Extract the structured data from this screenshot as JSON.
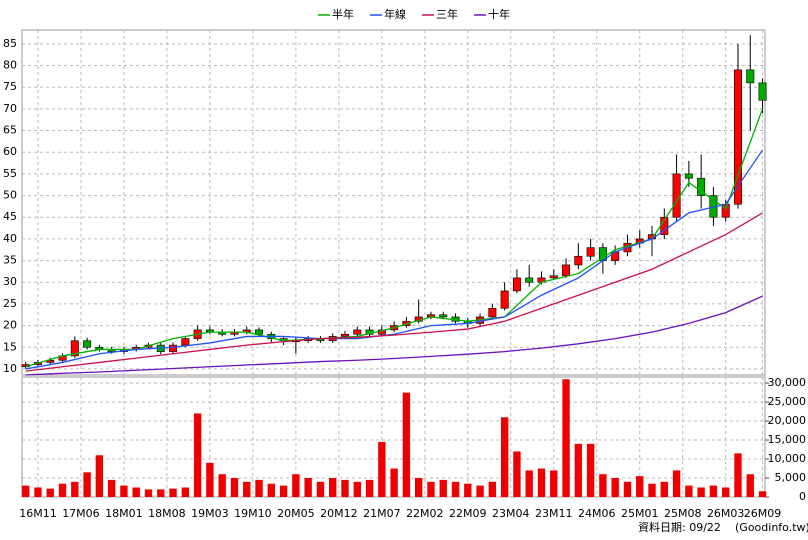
{
  "chart_data": {
    "type": "candlestick",
    "x": [
      -2,
      0,
      2,
      4,
      6,
      8,
      10,
      12,
      14,
      16,
      18,
      20,
      22,
      24,
      26,
      28,
      30,
      32,
      34,
      36,
      38,
      40,
      42,
      44,
      46,
      48,
      50,
      52,
      54,
      56,
      58,
      60,
      62,
      64,
      66,
      68,
      70,
      72,
      74,
      76,
      78,
      80,
      82,
      84,
      86,
      88,
      90,
      92,
      94,
      96,
      98,
      100,
      102,
      104,
      106,
      108,
      110,
      112,
      114,
      116,
      118
    ],
    "open": [
      10.5,
      11,
      11.5,
      12,
      13,
      16.5,
      15,
      14.5,
      14,
      14.5,
      15,
      15.5,
      14,
      15.5,
      17,
      19,
      18.5,
      18,
      18.5,
      19,
      18,
      17,
      16.5,
      16.5,
      17,
      16.5,
      17.5,
      18,
      19,
      18,
      19,
      20,
      21,
      22,
      22.5,
      22,
      21,
      20.5,
      22,
      24,
      28,
      31,
      30,
      31,
      31.5,
      34,
      36,
      38,
      35,
      37,
      39,
      40,
      41,
      45,
      55,
      54,
      50,
      45,
      48,
      79,
      76
    ],
    "high": [
      11.6,
      12.1,
      12.6,
      13.6,
      17.5,
      17.2,
      15.6,
      15.1,
      15.1,
      15.6,
      16.1,
      16.1,
      16.1,
      17.6,
      20,
      19.8,
      19.2,
      19.2,
      19.8,
      19.6,
      18.6,
      17.6,
      17.2,
      17.6,
      17.6,
      18.2,
      18.8,
      19.8,
      19.8,
      20,
      21,
      22,
      26,
      23.2,
      23.2,
      22.8,
      21.8,
      22.8,
      25,
      30,
      33,
      34,
      32.5,
      33,
      35.5,
      39,
      40,
      39,
      38.5,
      41,
      42,
      43,
      47,
      59.5,
      58,
      59.5,
      52,
      49,
      85,
      87,
      77
    ],
    "low": [
      10,
      10.5,
      11,
      11.5,
      12.5,
      14.5,
      14,
      13.5,
      13.5,
      14,
      14.5,
      13.4,
      13.5,
      15,
      16.5,
      18,
      17.5,
      17.5,
      18,
      17.5,
      16,
      15.5,
      13.5,
      16,
      16,
      16,
      17,
      17.5,
      17.5,
      17.5,
      18.5,
      19.5,
      20.5,
      21.5,
      21.5,
      20.5,
      19.5,
      20,
      21.5,
      23.5,
      27.5,
      29,
      29.5,
      30.5,
      31,
      33,
      35,
      32,
      34,
      36,
      38,
      36,
      40,
      44,
      52,
      47,
      43,
      44,
      47,
      65,
      69
    ],
    "close": [
      11,
      11.5,
      12,
      13,
      16.5,
      15,
      14.5,
      14,
      14.5,
      15,
      15.5,
      14,
      15.5,
      17,
      19,
      18.5,
      18,
      18.5,
      19,
      18,
      17,
      16.5,
      16.5,
      17,
      16.5,
      17.5,
      18,
      19,
      18,
      19,
      20,
      21,
      22,
      22.5,
      22,
      21,
      20.5,
      22,
      24,
      28,
      31,
      30,
      31,
      31.5,
      34,
      36,
      38,
      35,
      37,
      39,
      40,
      41,
      45,
      55,
      54,
      50,
      45,
      48,
      79,
      76,
      72
    ],
    "up_color": "#ff0000",
    "down_color": "#00aa00",
    "lines": [
      {
        "name": "半年",
        "color": "#00b000",
        "x": [
          -2,
          4,
          10,
          16,
          22,
          28,
          34,
          40,
          46,
          52,
          58,
          64,
          70,
          76,
          82,
          88,
          94,
          100,
          106,
          112,
          118
        ],
        "values": [
          10.5,
          13,
          14.5,
          14.5,
          17,
          18.5,
          18.5,
          16.5,
          17,
          17.5,
          19.5,
          22,
          21,
          22,
          30,
          32,
          37.5,
          40,
          53,
          47,
          70
        ]
      },
      {
        "name": "年線",
        "color": "#2050ff",
        "x": [
          -2,
          4,
          10,
          16,
          22,
          28,
          34,
          40,
          46,
          52,
          58,
          64,
          70,
          76,
          82,
          88,
          94,
          100,
          106,
          112,
          118
        ],
        "values": [
          10,
          11.5,
          13.5,
          14.5,
          15,
          16,
          17.5,
          17.5,
          17,
          17,
          18,
          20,
          20.5,
          22,
          27,
          31,
          37,
          40,
          46,
          48,
          60.5
        ]
      },
      {
        "name": "三年",
        "color": "#d0104a",
        "x": [
          -2,
          4,
          10,
          16,
          22,
          28,
          34,
          40,
          46,
          52,
          58,
          64,
          70,
          76,
          82,
          88,
          94,
          100,
          106,
          112,
          118
        ],
        "values": [
          9.5,
          10.5,
          11.5,
          12.5,
          13.5,
          14.5,
          15.5,
          16.3,
          17,
          17.3,
          17.8,
          18.5,
          19.2,
          21,
          24,
          27,
          30,
          33,
          37,
          41,
          46
        ]
      },
      {
        "name": "十年",
        "color": "#6a10c0",
        "x": [
          -2,
          4,
          10,
          16,
          22,
          28,
          34,
          40,
          46,
          52,
          58,
          64,
          70,
          76,
          82,
          88,
          94,
          100,
          106,
          112,
          118
        ],
        "values": [
          8.6,
          9,
          9.3,
          9.7,
          10.1,
          10.5,
          10.9,
          11.3,
          11.7,
          12,
          12.4,
          12.9,
          13.4,
          14,
          14.8,
          15.8,
          17,
          18.5,
          20.5,
          23,
          26.8
        ]
      }
    ],
    "volume": {
      "color": "#ee0000",
      "values": [
        3000,
        2500,
        2200,
        3500,
        4000,
        6500,
        11000,
        4500,
        3000,
        2500,
        2000,
        2000,
        2200,
        2500,
        22000,
        9000,
        6000,
        5000,
        4000,
        4500,
        3500,
        3000,
        6000,
        5000,
        4000,
        5000,
        4500,
        4000,
        4500,
        14500,
        7500,
        27500,
        5000,
        4000,
        4500,
        4000,
        3500,
        3000,
        4000,
        21000,
        12000,
        7000,
        7500,
        7000,
        31000,
        14000,
        14000,
        6000,
        5000,
        4000,
        5500,
        3500,
        4000,
        7000,
        3000,
        2500,
        3000,
        2500,
        11500,
        6000,
        1500
      ]
    },
    "xlim": [
      -2.6,
      118.4
    ],
    "xticks": [
      {
        "value": 0,
        "label": "16M11"
      },
      {
        "value": 7,
        "label": "17M06"
      },
      {
        "value": 14,
        "label": "18M01"
      },
      {
        "value": 21,
        "label": "18M08"
      },
      {
        "value": 28,
        "label": "19M03"
      },
      {
        "value": 35,
        "label": "19M10"
      },
      {
        "value": 42,
        "label": "20M05"
      },
      {
        "value": 49,
        "label": "20M12"
      },
      {
        "value": 56,
        "label": "21M07"
      },
      {
        "value": 63,
        "label": "22M02"
      },
      {
        "value": 70,
        "label": "22M09"
      },
      {
        "value": 77,
        "label": "23M04"
      },
      {
        "value": 84,
        "label": "23M11"
      },
      {
        "value": 91,
        "label": "24M06"
      },
      {
        "value": 98,
        "label": "25M01"
      },
      {
        "value": 105,
        "label": "25M08"
      },
      {
        "value": 112,
        "label": "26M03"
      },
      {
        "value": 118,
        "label": "26M09"
      }
    ],
    "ylim": [
      8.6,
      88.2
    ],
    "yticks": [
      10,
      15,
      20,
      25,
      30,
      35,
      40,
      45,
      50,
      55,
      60,
      65,
      70,
      75,
      80,
      85
    ],
    "y2lim": [
      0,
      31600
    ],
    "y2ticks": [
      0,
      {
        "value": 5000,
        "label": "5,000"
      },
      {
        "value": 10000,
        "label": "10,000"
      },
      {
        "value": 15000,
        "label": "15,000"
      },
      {
        "value": 20000,
        "label": "20,000"
      },
      {
        "value": 25000,
        "label": "25,000"
      },
      {
        "value": 30000,
        "label": "30,000"
      }
    ],
    "grid": true,
    "annotations": [
      "資料日期: 09/22",
      "(Goodinfo.tw)"
    ]
  }
}
